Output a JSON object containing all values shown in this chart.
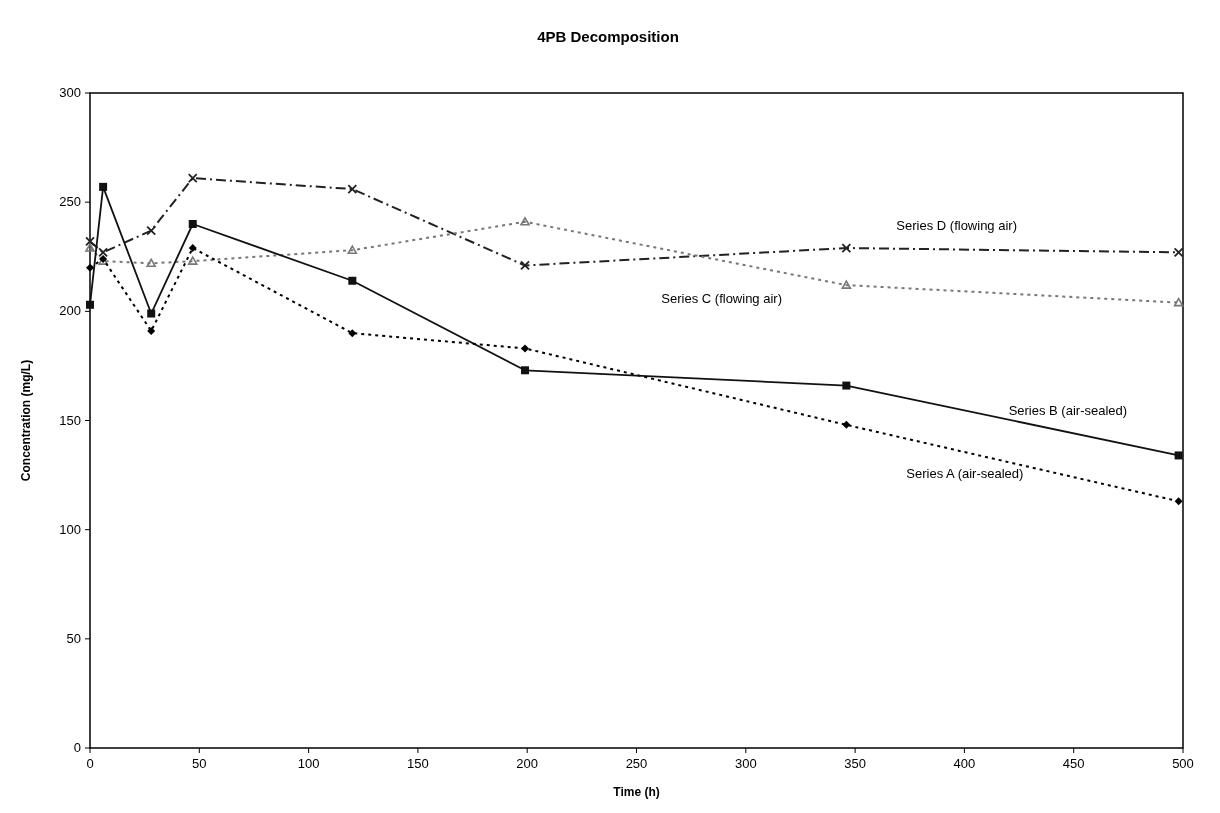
{
  "chart_data": {
    "type": "line",
    "title": "4PB Decomposition",
    "xlabel": "Time (h)",
    "ylabel": "Concentration (mg/L)",
    "x": [
      0,
      6,
      28,
      47,
      120,
      199,
      346,
      498
    ],
    "xlim": [
      0,
      500
    ],
    "xticks": [
      0,
      50,
      100,
      150,
      200,
      250,
      300,
      350,
      400,
      450,
      500
    ],
    "ylim": [
      0,
      300
    ],
    "yticks": [
      0,
      50,
      100,
      150,
      200,
      250,
      300
    ],
    "grid": false,
    "series": [
      {
        "name": "Series A (air-sealed)",
        "color": "#000000",
        "marker": "diamond",
        "line_style": "dotted",
        "values": [
          220,
          224,
          191,
          229,
          190,
          183,
          148,
          113
        ]
      },
      {
        "name": "Series B (air-sealed)",
        "color": "#111111",
        "marker": "square",
        "line_style": "solid",
        "values": [
          203,
          257,
          199,
          240,
          214,
          173,
          166,
          134
        ]
      },
      {
        "name": "Series C (flowing air)",
        "color": "#777777",
        "marker": "triangle",
        "line_style": "dotted",
        "values": [
          229,
          223,
          222,
          223,
          228,
          241,
          212,
          204
        ]
      },
      {
        "name": "Series D (flowing air)",
        "color": "#222222",
        "marker": "cross",
        "line_style": "dashdot",
        "values": [
          232,
          227,
          237,
          261,
          256,
          221,
          229,
          227
        ]
      }
    ]
  }
}
